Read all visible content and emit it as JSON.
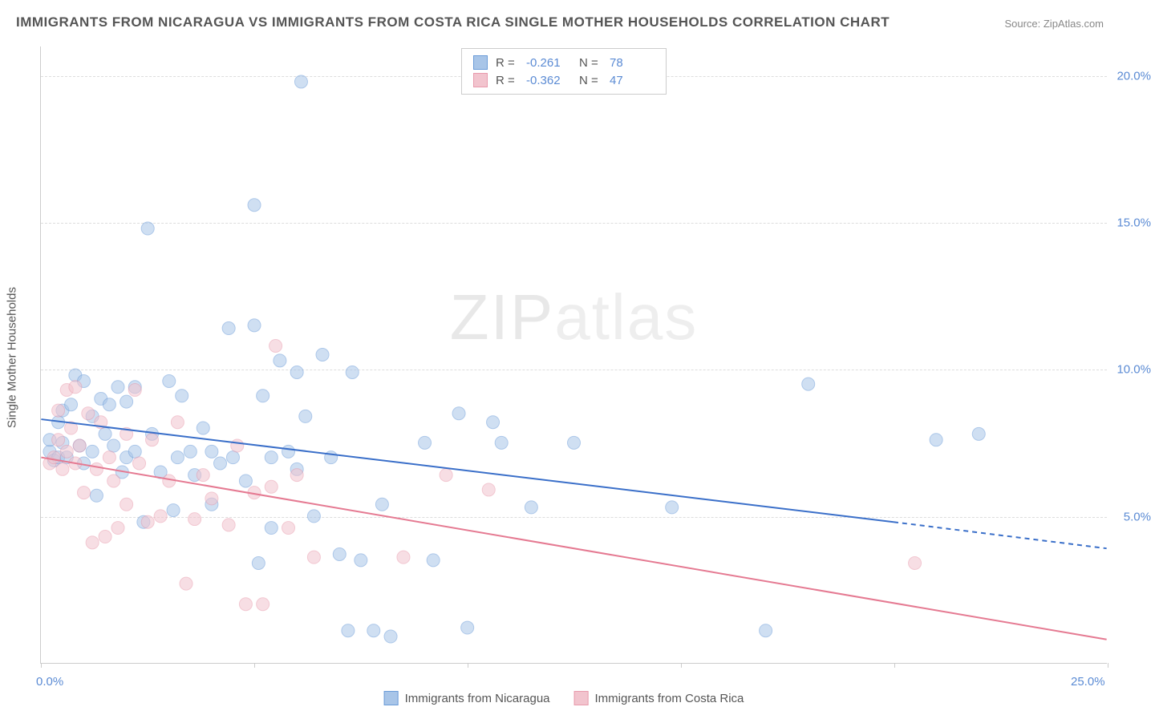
{
  "title": "IMMIGRANTS FROM NICARAGUA VS IMMIGRANTS FROM COSTA RICA SINGLE MOTHER HOUSEHOLDS CORRELATION CHART",
  "source": "Source: ZipAtlas.com",
  "ylabel": "Single Mother Households",
  "watermark_bold": "ZIP",
  "watermark_thin": "atlas",
  "chart": {
    "type": "scatter",
    "xlim": [
      0,
      25
    ],
    "ylim": [
      0,
      21
    ],
    "xtick_positions": [
      0,
      5,
      10,
      15,
      20,
      25
    ],
    "xtick_labels": {
      "0": "0.0%",
      "25": "25.0%"
    },
    "ytick_positions": [
      5,
      10,
      15,
      20
    ],
    "ytick_labels": {
      "5": "5.0%",
      "10": "10.0%",
      "15": "15.0%",
      "20": "20.0%"
    },
    "background_color": "#ffffff",
    "grid_color": "#dddddd",
    "axis_color": "#cccccc",
    "tick_label_color": "#5b8bd4",
    "marker_radius": 8,
    "marker_opacity": 0.55,
    "line_width": 2,
    "series": [
      {
        "name": "Immigrants from Nicaragua",
        "color_fill": "#a8c5e8",
        "color_stroke": "#6a9bd8",
        "line_color": "#3a6fc9",
        "r": -0.261,
        "n": 78,
        "trend_solid": {
          "x1": 0,
          "y1": 8.3,
          "x2": 20,
          "y2": 4.8
        },
        "trend_dashed": {
          "x1": 20,
          "y1": 4.8,
          "x2": 25,
          "y2": 3.9
        },
        "points": [
          [
            0.2,
            7.2
          ],
          [
            0.2,
            7.6
          ],
          [
            0.3,
            6.9
          ],
          [
            0.4,
            7.0
          ],
          [
            0.4,
            8.2
          ],
          [
            0.5,
            7.5
          ],
          [
            0.5,
            8.6
          ],
          [
            0.6,
            7.0
          ],
          [
            0.7,
            8.8
          ],
          [
            0.8,
            9.8
          ],
          [
            0.9,
            7.4
          ],
          [
            1.0,
            9.6
          ],
          [
            1.0,
            6.8
          ],
          [
            1.2,
            7.2
          ],
          [
            1.2,
            8.4
          ],
          [
            1.3,
            5.7
          ],
          [
            1.4,
            9.0
          ],
          [
            1.5,
            7.8
          ],
          [
            1.6,
            8.8
          ],
          [
            1.7,
            7.4
          ],
          [
            1.8,
            9.4
          ],
          [
            1.9,
            6.5
          ],
          [
            2.0,
            8.9
          ],
          [
            2.0,
            7.0
          ],
          [
            2.2,
            9.4
          ],
          [
            2.2,
            7.2
          ],
          [
            2.4,
            4.8
          ],
          [
            2.5,
            14.8
          ],
          [
            2.6,
            7.8
          ],
          [
            2.8,
            6.5
          ],
          [
            3.0,
            9.6
          ],
          [
            3.1,
            5.2
          ],
          [
            3.2,
            7.0
          ],
          [
            3.3,
            9.1
          ],
          [
            3.5,
            7.2
          ],
          [
            3.6,
            6.4
          ],
          [
            3.8,
            8.0
          ],
          [
            4.0,
            7.2
          ],
          [
            4.0,
            5.4
          ],
          [
            4.2,
            6.8
          ],
          [
            4.4,
            11.4
          ],
          [
            4.5,
            7.0
          ],
          [
            4.8,
            6.2
          ],
          [
            5.0,
            15.6
          ],
          [
            5.0,
            11.5
          ],
          [
            5.1,
            3.4
          ],
          [
            5.2,
            9.1
          ],
          [
            5.4,
            7.0
          ],
          [
            5.4,
            4.6
          ],
          [
            5.6,
            10.3
          ],
          [
            5.8,
            7.2
          ],
          [
            6.0,
            9.9
          ],
          [
            6.0,
            6.6
          ],
          [
            6.1,
            19.8
          ],
          [
            6.2,
            8.4
          ],
          [
            6.4,
            5.0
          ],
          [
            6.6,
            10.5
          ],
          [
            6.8,
            7.0
          ],
          [
            7.0,
            3.7
          ],
          [
            7.2,
            1.1
          ],
          [
            7.3,
            9.9
          ],
          [
            7.5,
            3.5
          ],
          [
            7.8,
            1.1
          ],
          [
            8.0,
            5.4
          ],
          [
            8.2,
            0.9
          ],
          [
            9.0,
            7.5
          ],
          [
            9.2,
            3.5
          ],
          [
            9.8,
            8.5
          ],
          [
            10.0,
            1.2
          ],
          [
            10.6,
            8.2
          ],
          [
            10.8,
            7.5
          ],
          [
            11.5,
            5.3
          ],
          [
            12.5,
            7.5
          ],
          [
            14.8,
            5.3
          ],
          [
            17.0,
            1.1
          ],
          [
            18.0,
            9.5
          ],
          [
            21.0,
            7.6
          ],
          [
            22.0,
            7.8
          ]
        ]
      },
      {
        "name": "Immigrants from Costa Rica",
        "color_fill": "#f2c4ce",
        "color_stroke": "#e89aac",
        "line_color": "#e57a92",
        "r": -0.362,
        "n": 47,
        "trend_solid": {
          "x1": 0,
          "y1": 7.0,
          "x2": 25,
          "y2": 0.8
        },
        "trend_dashed": null,
        "points": [
          [
            0.2,
            6.8
          ],
          [
            0.3,
            7.0
          ],
          [
            0.4,
            7.6
          ],
          [
            0.4,
            8.6
          ],
          [
            0.5,
            6.6
          ],
          [
            0.6,
            9.3
          ],
          [
            0.6,
            7.2
          ],
          [
            0.7,
            8.0
          ],
          [
            0.8,
            9.4
          ],
          [
            0.8,
            6.8
          ],
          [
            0.9,
            7.4
          ],
          [
            1.0,
            5.8
          ],
          [
            1.1,
            8.5
          ],
          [
            1.2,
            4.1
          ],
          [
            1.3,
            6.6
          ],
          [
            1.4,
            8.2
          ],
          [
            1.5,
            4.3
          ],
          [
            1.6,
            7.0
          ],
          [
            1.7,
            6.2
          ],
          [
            1.8,
            4.6
          ],
          [
            2.0,
            5.4
          ],
          [
            2.0,
            7.8
          ],
          [
            2.2,
            9.3
          ],
          [
            2.3,
            6.8
          ],
          [
            2.5,
            4.8
          ],
          [
            2.6,
            7.6
          ],
          [
            2.8,
            5.0
          ],
          [
            3.0,
            6.2
          ],
          [
            3.2,
            8.2
          ],
          [
            3.4,
            2.7
          ],
          [
            3.6,
            4.9
          ],
          [
            3.8,
            6.4
          ],
          [
            4.0,
            5.6
          ],
          [
            4.4,
            4.7
          ],
          [
            4.6,
            7.4
          ],
          [
            4.8,
            2.0
          ],
          [
            5.0,
            5.8
          ],
          [
            5.2,
            2.0
          ],
          [
            5.4,
            6.0
          ],
          [
            5.5,
            10.8
          ],
          [
            5.8,
            4.6
          ],
          [
            6.0,
            6.4
          ],
          [
            6.4,
            3.6
          ],
          [
            8.5,
            3.6
          ],
          [
            9.5,
            6.4
          ],
          [
            10.5,
            5.9
          ],
          [
            20.5,
            3.4
          ]
        ]
      }
    ]
  },
  "legend_top": {
    "r_label": "R =",
    "n_label": "N ="
  },
  "legend_bottom_labels": [
    "Immigrants from Nicaragua",
    "Immigrants from Costa Rica"
  ]
}
